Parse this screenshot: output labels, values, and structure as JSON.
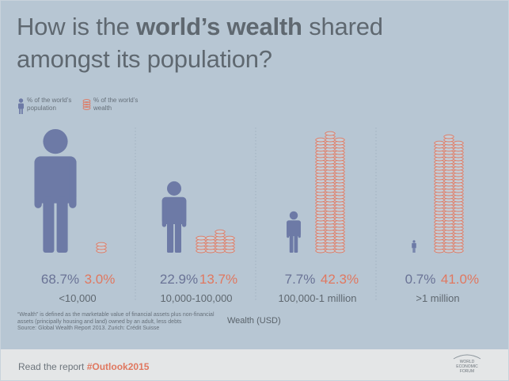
{
  "title": {
    "line1_pre": "How is the ",
    "line1_bold": "world’s wealth",
    "line1_post": " shared",
    "line2": "amongst its population?"
  },
  "legend": {
    "population_icon": "person-icon",
    "population_label": "% of the world’s population",
    "wealth_icon": "coin-stack-icon",
    "wealth_label": "% of the world’s wealth"
  },
  "colors": {
    "population": "#6d7aa6",
    "wealth": "#e07860",
    "background": "#b7c6d3",
    "footer_bg": "#e4e6e7"
  },
  "chart_data": {
    "type": "bar",
    "xlabel": "Wealth (USD)",
    "categories": [
      "<10,000",
      "10,000-100,000",
      "100,000-1 million",
      ">1 million"
    ],
    "series": [
      {
        "name": "% of the world’s population",
        "values": [
          68.7,
          22.9,
          7.7,
          0.7
        ],
        "labels": [
          "68.7%",
          "22.9%",
          "7.7%",
          "0.7%"
        ]
      },
      {
        "name": "% of the world’s wealth",
        "values": [
          3.0,
          13.7,
          42.3,
          41.0
        ],
        "labels": [
          "3.0%",
          "13.7%",
          "42.3%",
          "41.0%"
        ]
      }
    ]
  },
  "footnote": {
    "line1": "“Wealth” is defined as the marketable value of financial assets plus non-financial",
    "line2": "assets (principally housing and land) owned by an adult, less debts",
    "line3": "Source: Global Wealth Report 2013. Zurich: Crédit Suisse"
  },
  "footer": {
    "text": "Read the report ",
    "hashtag": "#Outlook2015"
  },
  "logo": {
    "line1": "WORLD",
    "line2": "ECONOMIC",
    "line3": "FORUM"
  }
}
